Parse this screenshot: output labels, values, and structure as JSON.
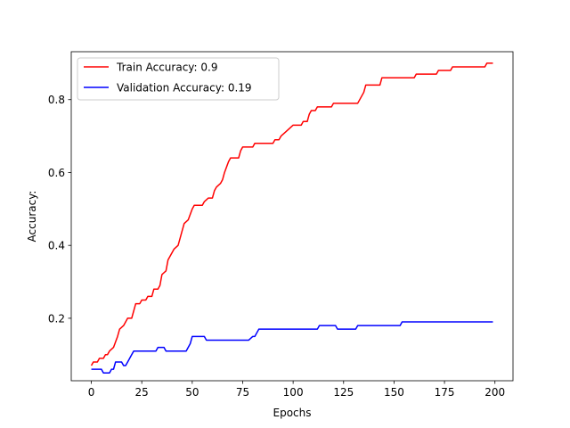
{
  "chart_data": {
    "type": "line",
    "title": "",
    "xlabel": "Epochs",
    "ylabel": "Accuracy:",
    "xlim": [
      -9.95,
      208.95
    ],
    "ylim": [
      0.0285,
      0.9315
    ],
    "xticks": [
      0,
      25,
      50,
      75,
      100,
      125,
      150,
      175,
      200
    ],
    "yticks": [
      0.2,
      0.4,
      0.6,
      0.8
    ],
    "grid": false,
    "legend_position": "upper left",
    "series": [
      {
        "name": "Train Accuracy: 0.9",
        "color": "#ff0000",
        "points": [
          [
            0,
            0.07
          ],
          [
            1,
            0.08
          ],
          [
            3,
            0.08
          ],
          [
            4,
            0.09
          ],
          [
            6,
            0.09
          ],
          [
            7,
            0.1
          ],
          [
            8,
            0.1
          ],
          [
            9,
            0.11
          ],
          [
            11,
            0.12
          ],
          [
            13,
            0.15
          ],
          [
            14,
            0.17
          ],
          [
            16,
            0.18
          ],
          [
            18,
            0.2
          ],
          [
            20,
            0.2
          ],
          [
            21,
            0.22
          ],
          [
            22,
            0.24
          ],
          [
            24,
            0.24
          ],
          [
            25,
            0.25
          ],
          [
            27,
            0.25
          ],
          [
            28,
            0.26
          ],
          [
            30,
            0.26
          ],
          [
            31,
            0.28
          ],
          [
            33,
            0.28
          ],
          [
            34,
            0.29
          ],
          [
            35,
            0.32
          ],
          [
            37,
            0.33
          ],
          [
            38,
            0.36
          ],
          [
            40,
            0.38
          ],
          [
            41,
            0.39
          ],
          [
            43,
            0.4
          ],
          [
            44,
            0.42
          ],
          [
            45,
            0.44
          ],
          [
            46,
            0.46
          ],
          [
            48,
            0.47
          ],
          [
            50,
            0.5
          ],
          [
            51,
            0.51
          ],
          [
            55,
            0.51
          ],
          [
            56,
            0.52
          ],
          [
            58,
            0.53
          ],
          [
            60,
            0.53
          ],
          [
            61,
            0.55
          ],
          [
            62,
            0.56
          ],
          [
            64,
            0.57
          ],
          [
            65,
            0.58
          ],
          [
            66,
            0.6
          ],
          [
            68,
            0.63
          ],
          [
            69,
            0.64
          ],
          [
            73,
            0.64
          ],
          [
            74,
            0.66
          ],
          [
            75,
            0.67
          ],
          [
            80,
            0.67
          ],
          [
            81,
            0.68
          ],
          [
            90,
            0.68
          ],
          [
            91,
            0.69
          ],
          [
            93,
            0.69
          ],
          [
            94,
            0.7
          ],
          [
            96,
            0.71
          ],
          [
            98,
            0.72
          ],
          [
            100,
            0.73
          ],
          [
            104,
            0.73
          ],
          [
            105,
            0.74
          ],
          [
            107,
            0.74
          ],
          [
            108,
            0.76
          ],
          [
            109,
            0.77
          ],
          [
            111,
            0.77
          ],
          [
            112,
            0.78
          ],
          [
            119,
            0.78
          ],
          [
            120,
            0.79
          ],
          [
            132,
            0.79
          ],
          [
            135,
            0.82
          ],
          [
            136,
            0.84
          ],
          [
            143,
            0.84
          ],
          [
            144,
            0.86
          ],
          [
            160,
            0.86
          ],
          [
            161,
            0.87
          ],
          [
            171,
            0.87
          ],
          [
            172,
            0.88
          ],
          [
            178,
            0.88
          ],
          [
            179,
            0.89
          ],
          [
            195,
            0.89
          ],
          [
            196,
            0.9
          ],
          [
            199,
            0.9
          ]
        ]
      },
      {
        "name": "Validation Accuracy: 0.19",
        "color": "#0000ff",
        "points": [
          [
            0,
            0.06
          ],
          [
            5,
            0.06
          ],
          [
            6,
            0.05
          ],
          [
            9,
            0.05
          ],
          [
            10,
            0.06
          ],
          [
            11,
            0.06
          ],
          [
            12,
            0.08
          ],
          [
            15,
            0.08
          ],
          [
            16,
            0.07
          ],
          [
            17,
            0.07
          ],
          [
            18,
            0.08
          ],
          [
            19,
            0.09
          ],
          [
            20,
            0.1
          ],
          [
            21,
            0.11
          ],
          [
            32,
            0.11
          ],
          [
            33,
            0.12
          ],
          [
            36,
            0.12
          ],
          [
            37,
            0.11
          ],
          [
            47,
            0.11
          ],
          [
            49,
            0.13
          ],
          [
            50,
            0.15
          ],
          [
            56,
            0.15
          ],
          [
            57,
            0.14
          ],
          [
            78,
            0.14
          ],
          [
            80,
            0.15
          ],
          [
            81,
            0.15
          ],
          [
            83,
            0.17
          ],
          [
            112,
            0.17
          ],
          [
            113,
            0.18
          ],
          [
            121,
            0.18
          ],
          [
            122,
            0.17
          ],
          [
            129,
            0.17
          ],
          [
            131,
            0.17
          ],
          [
            132,
            0.18
          ],
          [
            153,
            0.18
          ],
          [
            154,
            0.19
          ],
          [
            199,
            0.19
          ]
        ]
      }
    ]
  }
}
